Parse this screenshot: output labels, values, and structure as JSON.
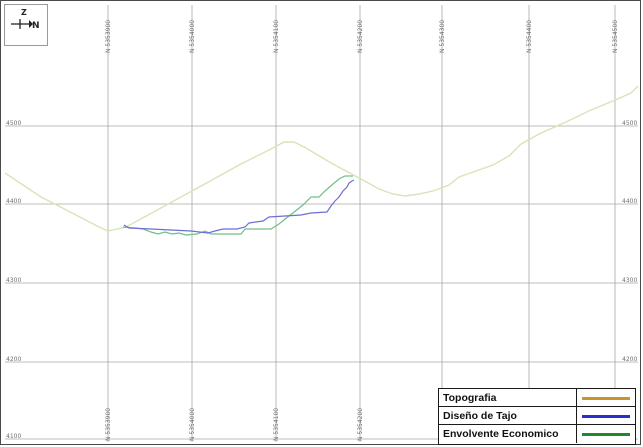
{
  "compass": {
    "up_label": "Z",
    "right_label": "N",
    "icon": "north-arrow-icon"
  },
  "x_tick_labels_top": [
    "N 5353900",
    "N 5354000",
    "N 5354100",
    "N 5354200",
    "N 5354300",
    "N 5354400",
    "N 5354500"
  ],
  "x_tick_labels_bottom": [
    "N 5353900",
    "N 5354000",
    "N 5354100",
    "N 5354200"
  ],
  "y_tick_labels": [
    "4500",
    "4400",
    "4300",
    "4200",
    "4100"
  ],
  "legend": {
    "items": [
      {
        "label": "Topografia",
        "color": "#c8952c"
      },
      {
        "label": "Diseño de Tajo",
        "color": "#2a2ecf"
      },
      {
        "label": "Envolvente Economico",
        "color": "#1f8a2a"
      }
    ]
  },
  "colors": {
    "grid": "#a8a8a8",
    "topografia_line": "#d8e4b8",
    "diseno_line": "#6c6fd6",
    "envolvente_line": "#6fbf86"
  }
}
